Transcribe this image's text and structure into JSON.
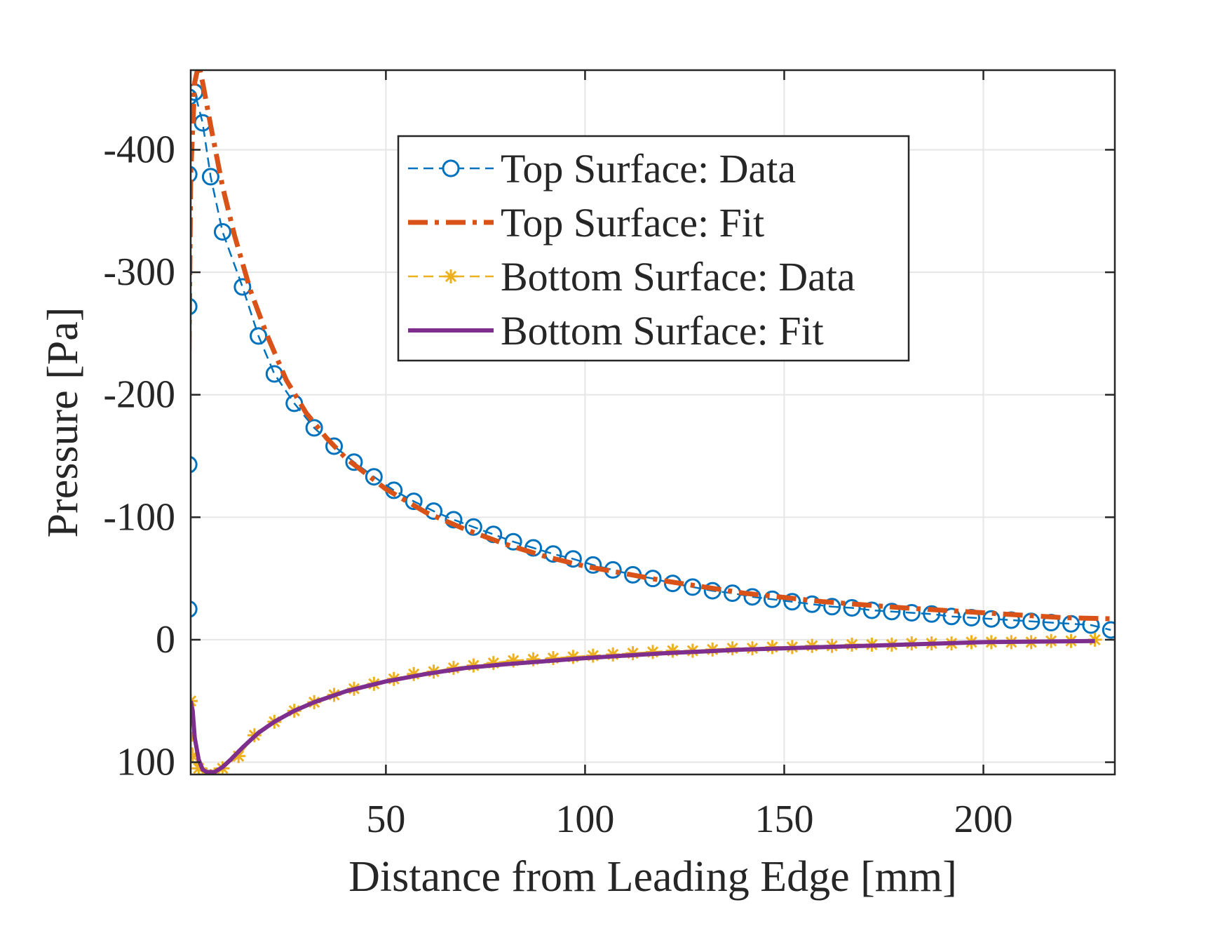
{
  "chart_data": {
    "type": "line",
    "title": "",
    "xlabel": "Distance from Leading Edge [mm]",
    "ylabel": "Pressure [Pa]",
    "xlim": [
      1,
      233
    ],
    "ylim": [
      -465,
      110
    ],
    "y_reversed": true,
    "grid": true,
    "legend_position": "top-center",
    "x_ticks": [
      50,
      100,
      150,
      200
    ],
    "x_tick_labels": [
      "50",
      "100",
      "150",
      "200"
    ],
    "y_ticks": [
      -400,
      -300,
      -200,
      -100,
      0,
      100
    ],
    "y_tick_labels": [
      "-400",
      "-300",
      "-200",
      "-100",
      "0",
      "100"
    ],
    "series": [
      {
        "name": "Top Surface: Data",
        "style": "dashed-circle",
        "color": "#0072BD",
        "x": [
          0.5,
          0.5,
          0.5,
          0.5,
          0.5,
          2,
          4,
          6,
          9,
          14,
          18,
          22,
          27,
          32,
          37,
          42,
          47,
          52,
          57,
          62,
          67,
          72,
          77,
          82,
          87,
          92,
          97,
          102,
          107,
          112,
          117,
          122,
          127,
          132,
          137,
          142,
          147,
          152,
          157,
          162,
          167,
          172,
          177,
          182,
          187,
          192,
          197,
          202,
          207,
          212,
          217,
          222,
          227,
          232
        ],
        "y": [
          -25,
          -143,
          -272,
          -380,
          -443,
          -447,
          -422,
          -378,
          -333,
          -288,
          -248,
          -217,
          -193,
          -173,
          -158,
          -145,
          -133,
          -122,
          -113,
          -105,
          -98,
          -92,
          -86,
          -80,
          -75,
          -70,
          -66,
          -61,
          -57,
          -53,
          -50,
          -46,
          -43,
          -40,
          -38,
          -35,
          -33,
          -31,
          -29,
          -27,
          -26,
          -24,
          -23,
          -22,
          -21,
          -19,
          -18,
          -17,
          -16,
          -15,
          -14,
          -13,
          -12,
          -8
        ]
      },
      {
        "name": "Top Surface: Fit",
        "style": "dash-dot",
        "color": "#D95319",
        "x": [
          0.5,
          1,
          2,
          3,
          4,
          6,
          9,
          12,
          16,
          20,
          25,
          30,
          35,
          40,
          50,
          60,
          70,
          80,
          90,
          100,
          120,
          140,
          160,
          180,
          200,
          220,
          233
        ],
        "y": [
          -205,
          -380,
          -455,
          -470,
          -455,
          -420,
          -370,
          -330,
          -285,
          -250,
          -212,
          -185,
          -165,
          -148,
          -123,
          -104,
          -90,
          -78,
          -68,
          -60,
          -48,
          -38,
          -31,
          -26,
          -22,
          -18,
          -17
        ]
      },
      {
        "name": "Bottom Surface: Data",
        "style": "dashed-star",
        "color": "#EDB120",
        "x": [
          1,
          1.5,
          3,
          5,
          7,
          9,
          13,
          17,
          22,
          27,
          32,
          37,
          42,
          47,
          52,
          57,
          62,
          67,
          72,
          77,
          82,
          87,
          92,
          97,
          102,
          107,
          112,
          117,
          122,
          127,
          132,
          137,
          142,
          147,
          152,
          157,
          162,
          167,
          172,
          177,
          182,
          187,
          192,
          197,
          202,
          207,
          212,
          217,
          222,
          228
        ],
        "y": [
          50,
          95,
          105,
          110,
          110,
          105,
          95,
          78,
          67,
          58,
          51,
          45,
          40,
          36,
          32,
          28,
          26,
          23,
          21,
          19,
          17,
          16,
          15,
          14,
          13,
          12,
          11,
          10,
          9,
          9,
          8,
          7,
          7,
          6,
          6,
          5,
          5,
          4,
          4,
          4,
          3,
          3,
          3,
          2,
          2,
          2,
          2,
          1,
          1,
          0
        ]
      },
      {
        "name": "Bottom Surface: Fit",
        "style": "solid",
        "color": "#7E2F8E",
        "x": [
          1,
          1.5,
          2,
          3,
          4,
          5,
          7,
          9,
          11,
          14,
          18,
          22,
          27,
          32,
          40,
          50,
          60,
          70,
          80,
          100,
          120,
          140,
          160,
          180,
          200,
          228
        ],
        "y": [
          50,
          58,
          80,
          98,
          106,
          108,
          108,
          104,
          98,
          88,
          76,
          67,
          58,
          51,
          42,
          34,
          28,
          23,
          20,
          15,
          11,
          8,
          6,
          4,
          2,
          1
        ]
      }
    ]
  }
}
